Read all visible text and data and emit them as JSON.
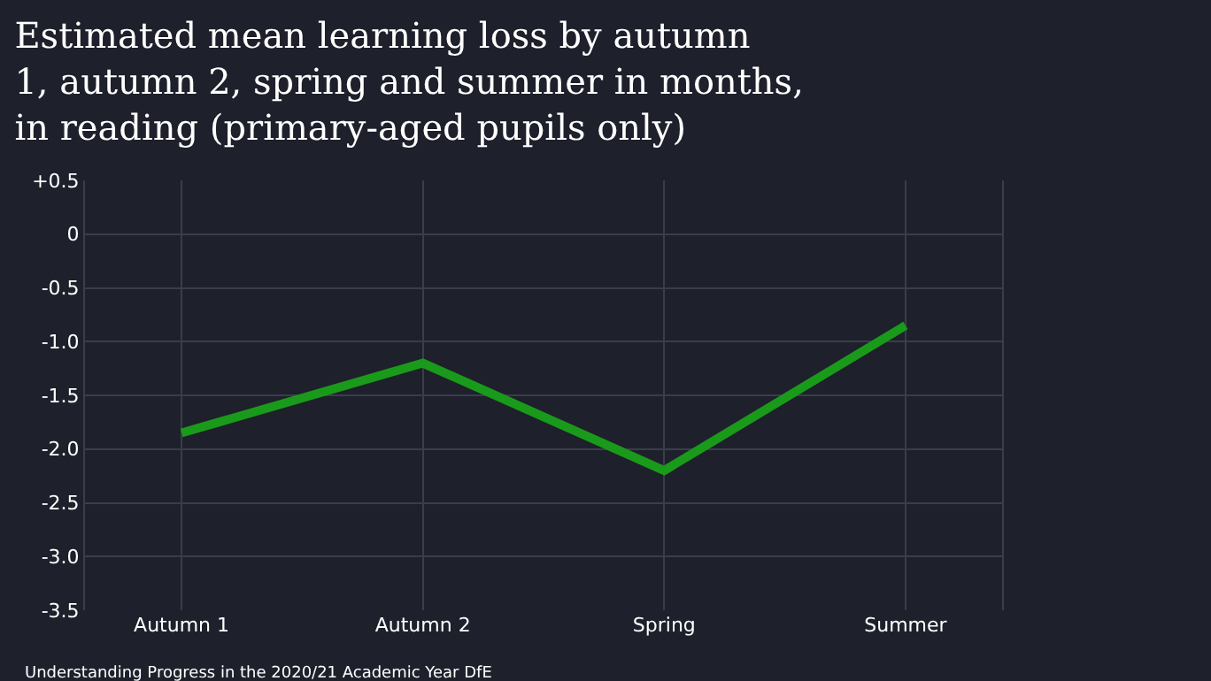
{
  "chart_data": {
    "type": "line",
    "title": "Estimated mean learning loss by autumn\n1, autumn 2, spring and summer in months,\nin reading (primary-aged pupils only)",
    "categories": [
      "Autumn 1",
      "Autumn 2",
      "Spring",
      "Summer"
    ],
    "series": [
      {
        "color": "#1a9a1a",
        "values": [
          -1.85,
          -1.2,
          -2.2,
          -0.85
        ]
      }
    ],
    "ylim": [
      -3.5,
      0.5
    ],
    "yticks": [
      {
        "value": 0.5,
        "label": "+0.5"
      },
      0,
      -0.5,
      {
        "value": -1.0,
        "label": "-1.0"
      },
      -1.5,
      {
        "value": -2.0,
        "label": "-2.0"
      },
      -2.5,
      {
        "value": -3.0,
        "label": "-3.0"
      },
      -3.5
    ],
    "grid": true,
    "legend": false,
    "marker": "none",
    "line_style": "solid",
    "annotations": [
      "Understanding Progress in the 2020/21 Academic Year DfE"
    ]
  }
}
